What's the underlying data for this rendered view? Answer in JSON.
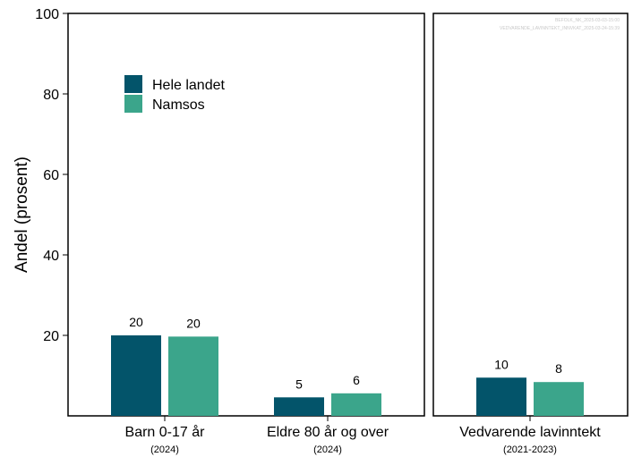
{
  "chart_data": {
    "type": "bar",
    "ylabel": "Andel (prosent)",
    "ylim": [
      0,
      100
    ],
    "yticks": [
      "20",
      "40",
      "60",
      "80",
      "100"
    ],
    "colors": {
      "Hele landet": "#03546A",
      "Namsos": "#3BA58B"
    },
    "series": [
      {
        "name": "Hele landet"
      },
      {
        "name": "Namsos"
      }
    ],
    "legend_position": "top-left",
    "watermark": [
      "BEFOLK_NK_2025-03-03-15:00",
      "VEDVARENDE_LAVINNTEKT_INNVKAT_2025-03-24-15:39"
    ],
    "panels": [
      {
        "categories": [
          {
            "label": "Barn 0-17 år",
            "period": "(2024)",
            "values": [
              20,
              19.7
            ],
            "labels": [
              "20",
              "20"
            ]
          },
          {
            "label": "Eldre 80 år og over",
            "period": "(2024)",
            "values": [
              4.6,
              5.6
            ],
            "labels": [
              "5",
              "6"
            ]
          }
        ]
      },
      {
        "categories": [
          {
            "label": "Vedvarende lavinntekt",
            "period": "(2021-2023)",
            "values": [
              9.5,
              8.4
            ],
            "labels": [
              "10",
              "8"
            ]
          }
        ]
      }
    ]
  }
}
